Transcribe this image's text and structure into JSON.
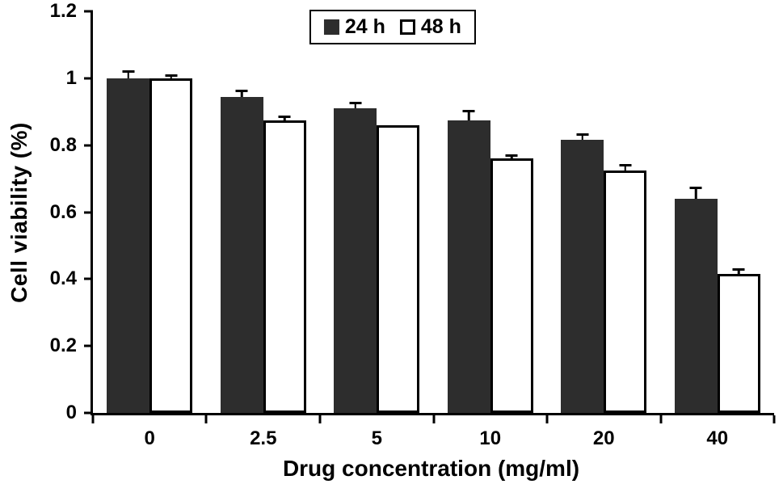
{
  "chart_data": {
    "type": "bar",
    "title": "",
    "xlabel": "Drug concentration (mg/ml)",
    "ylabel": "Cell viability (%)",
    "categories": [
      "0",
      "2.5",
      "5",
      "10",
      "20",
      "40"
    ],
    "series": [
      {
        "name": "24 h",
        "color": "#2d2d2d",
        "style": "filled",
        "values": [
          1.0,
          0.945,
          0.91,
          0.875,
          0.815,
          0.64
        ],
        "errors": [
          0.025,
          0.02,
          0.02,
          0.03,
          0.02,
          0.035
        ]
      },
      {
        "name": "48 h",
        "color": "#ffffff",
        "style": "open",
        "values": [
          1.0,
          0.875,
          0.86,
          0.76,
          0.725,
          0.415
        ],
        "errors": [
          0.02,
          0.02,
          0,
          0.02,
          0.025,
          0.025
        ]
      }
    ],
    "ylim": [
      0,
      1.2
    ],
    "yticks": [
      "0",
      "0.2",
      "0.4",
      "0.6",
      "0.8",
      "1",
      "1.2"
    ],
    "grid": false,
    "legend_position": "top-center",
    "error_bars": "upper"
  }
}
